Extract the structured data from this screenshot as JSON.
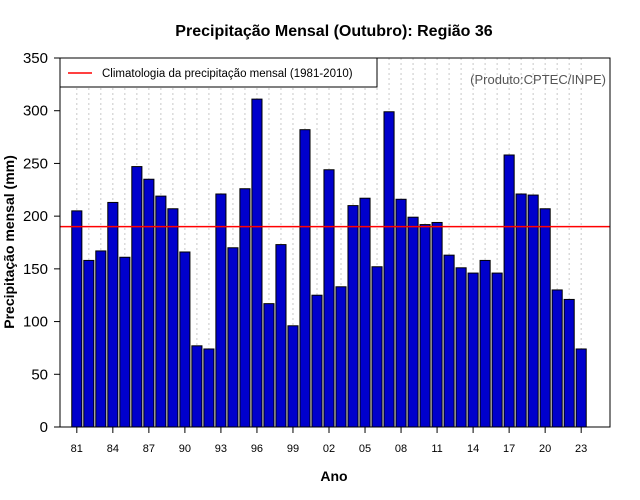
{
  "chart_data": {
    "type": "bar",
    "title": "Precipitação Mensal (Outubro): Região 36",
    "xlabel": "Ano",
    "ylabel": "Precipitação mensal (mm)",
    "ylim": [
      0,
      350
    ],
    "xlim": [
      1979.6,
      2025.4
    ],
    "yticks": [
      0,
      50,
      100,
      150,
      200,
      250,
      300,
      350
    ],
    "xticks": [
      {
        "year": 1981,
        "label": "81"
      },
      {
        "year": 1984,
        "label": "84"
      },
      {
        "year": 1987,
        "label": "87"
      },
      {
        "year": 1990,
        "label": "90"
      },
      {
        "year": 1993,
        "label": "93"
      },
      {
        "year": 1996,
        "label": "96"
      },
      {
        "year": 1999,
        "label": "99"
      },
      {
        "year": 2002,
        "label": "02"
      },
      {
        "year": 2005,
        "label": "05"
      },
      {
        "year": 2008,
        "label": "08"
      },
      {
        "year": 2011,
        "label": "11"
      },
      {
        "year": 2014,
        "label": "14"
      },
      {
        "year": 2017,
        "label": "17"
      },
      {
        "year": 2020,
        "label": "20"
      },
      {
        "year": 2023,
        "label": "23"
      }
    ],
    "years": [
      1981,
      1982,
      1983,
      1984,
      1985,
      1986,
      1987,
      1988,
      1989,
      1990,
      1991,
      1992,
      1993,
      1994,
      1995,
      1996,
      1997,
      1998,
      1999,
      2000,
      2001,
      2002,
      2003,
      2004,
      2005,
      2006,
      2007,
      2008,
      2009,
      2010,
      2011,
      2012,
      2013,
      2014,
      2015,
      2016,
      2017,
      2018,
      2019,
      2020,
      2021,
      2022,
      2023
    ],
    "values": [
      205,
      158,
      167,
      213,
      161,
      247,
      235,
      219,
      207,
      166,
      77,
      74,
      221,
      170,
      226,
      311,
      117,
      173,
      96,
      282,
      125,
      244,
      133,
      210,
      217,
      152,
      299,
      216,
      199,
      192,
      194,
      163,
      151,
      146,
      158,
      146,
      258,
      221,
      220,
      207,
      130,
      121,
      74
    ],
    "climatology": 190,
    "bar_color": "#0000cc",
    "climatology_color": "#ff0000",
    "legend": {
      "label": "Climatologia da precipitação mensal (1981-2010)",
      "position": "top-left"
    },
    "source": "(Produto:CPTEC/INPE)",
    "grid": "vertical dotted"
  }
}
